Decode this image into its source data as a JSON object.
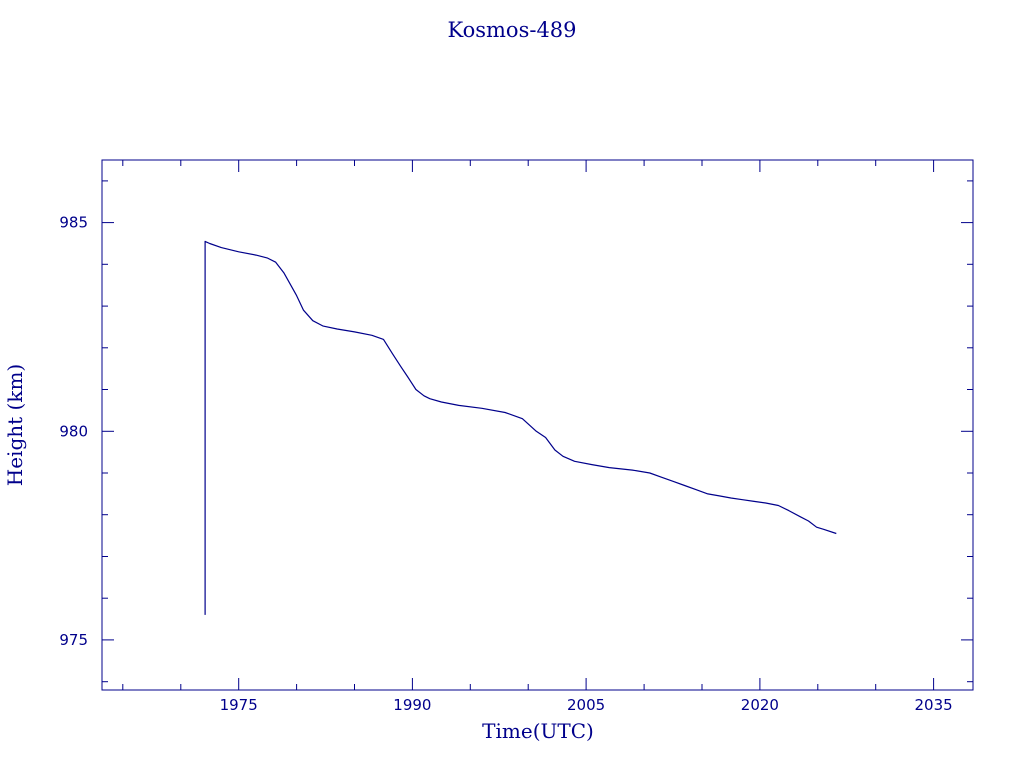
{
  "chart_data": {
    "type": "line",
    "title": "Kosmos-489",
    "xlabel": "Time(UTC)",
    "ylabel": "Height (km)",
    "xlim": [
      1963.2,
      2038.4
    ],
    "ylim": [
      973.8,
      986.5
    ],
    "x_ticks": [
      1975,
      1990,
      2005,
      2020,
      2035
    ],
    "y_ticks": [
      975,
      980,
      985
    ],
    "grid": false,
    "color": "#00008b",
    "series": [
      {
        "x": [
          1972.1,
          1972.1,
          1972.5,
          1973.5,
          1975.0,
          1976.5,
          1977.5,
          1978.2,
          1978.9,
          1979.5,
          1980.0,
          1980.6,
          1981.4,
          1982.3,
          1983.5,
          1985.0,
          1986.5,
          1987.5,
          1988.3,
          1989.0,
          1989.6,
          1990.3,
          1991.0,
          1991.5,
          1992.5,
          1994.0,
          1996.0,
          1998.0,
          1999.5,
          2000.7,
          2001.5,
          2002.3,
          2003.0,
          2004.0,
          2005.5,
          2007.0,
          2009.0,
          2010.5,
          2011.5,
          2012.5,
          2013.5,
          2014.5,
          2015.5,
          2016.5,
          2017.5,
          2018.5,
          2019.5,
          2020.5,
          2021.6,
          2022.5,
          2023.5,
          2024.2,
          2024.9,
          2025.5,
          2026.6
        ],
        "y": [
          975.6,
          984.55,
          984.5,
          984.4,
          984.3,
          984.22,
          984.15,
          984.05,
          983.8,
          983.5,
          983.25,
          982.9,
          982.65,
          982.52,
          982.45,
          982.38,
          982.3,
          982.2,
          981.85,
          981.55,
          981.3,
          981.0,
          980.85,
          980.78,
          980.7,
          980.62,
          980.55,
          980.45,
          980.3,
          980.0,
          979.85,
          979.55,
          979.4,
          979.28,
          979.2,
          979.13,
          979.07,
          979.0,
          978.9,
          978.8,
          978.7,
          978.6,
          978.5,
          978.45,
          978.4,
          978.36,
          978.32,
          978.28,
          978.22,
          978.1,
          977.95,
          977.85,
          977.7,
          977.65,
          977.55
        ]
      }
    ]
  }
}
